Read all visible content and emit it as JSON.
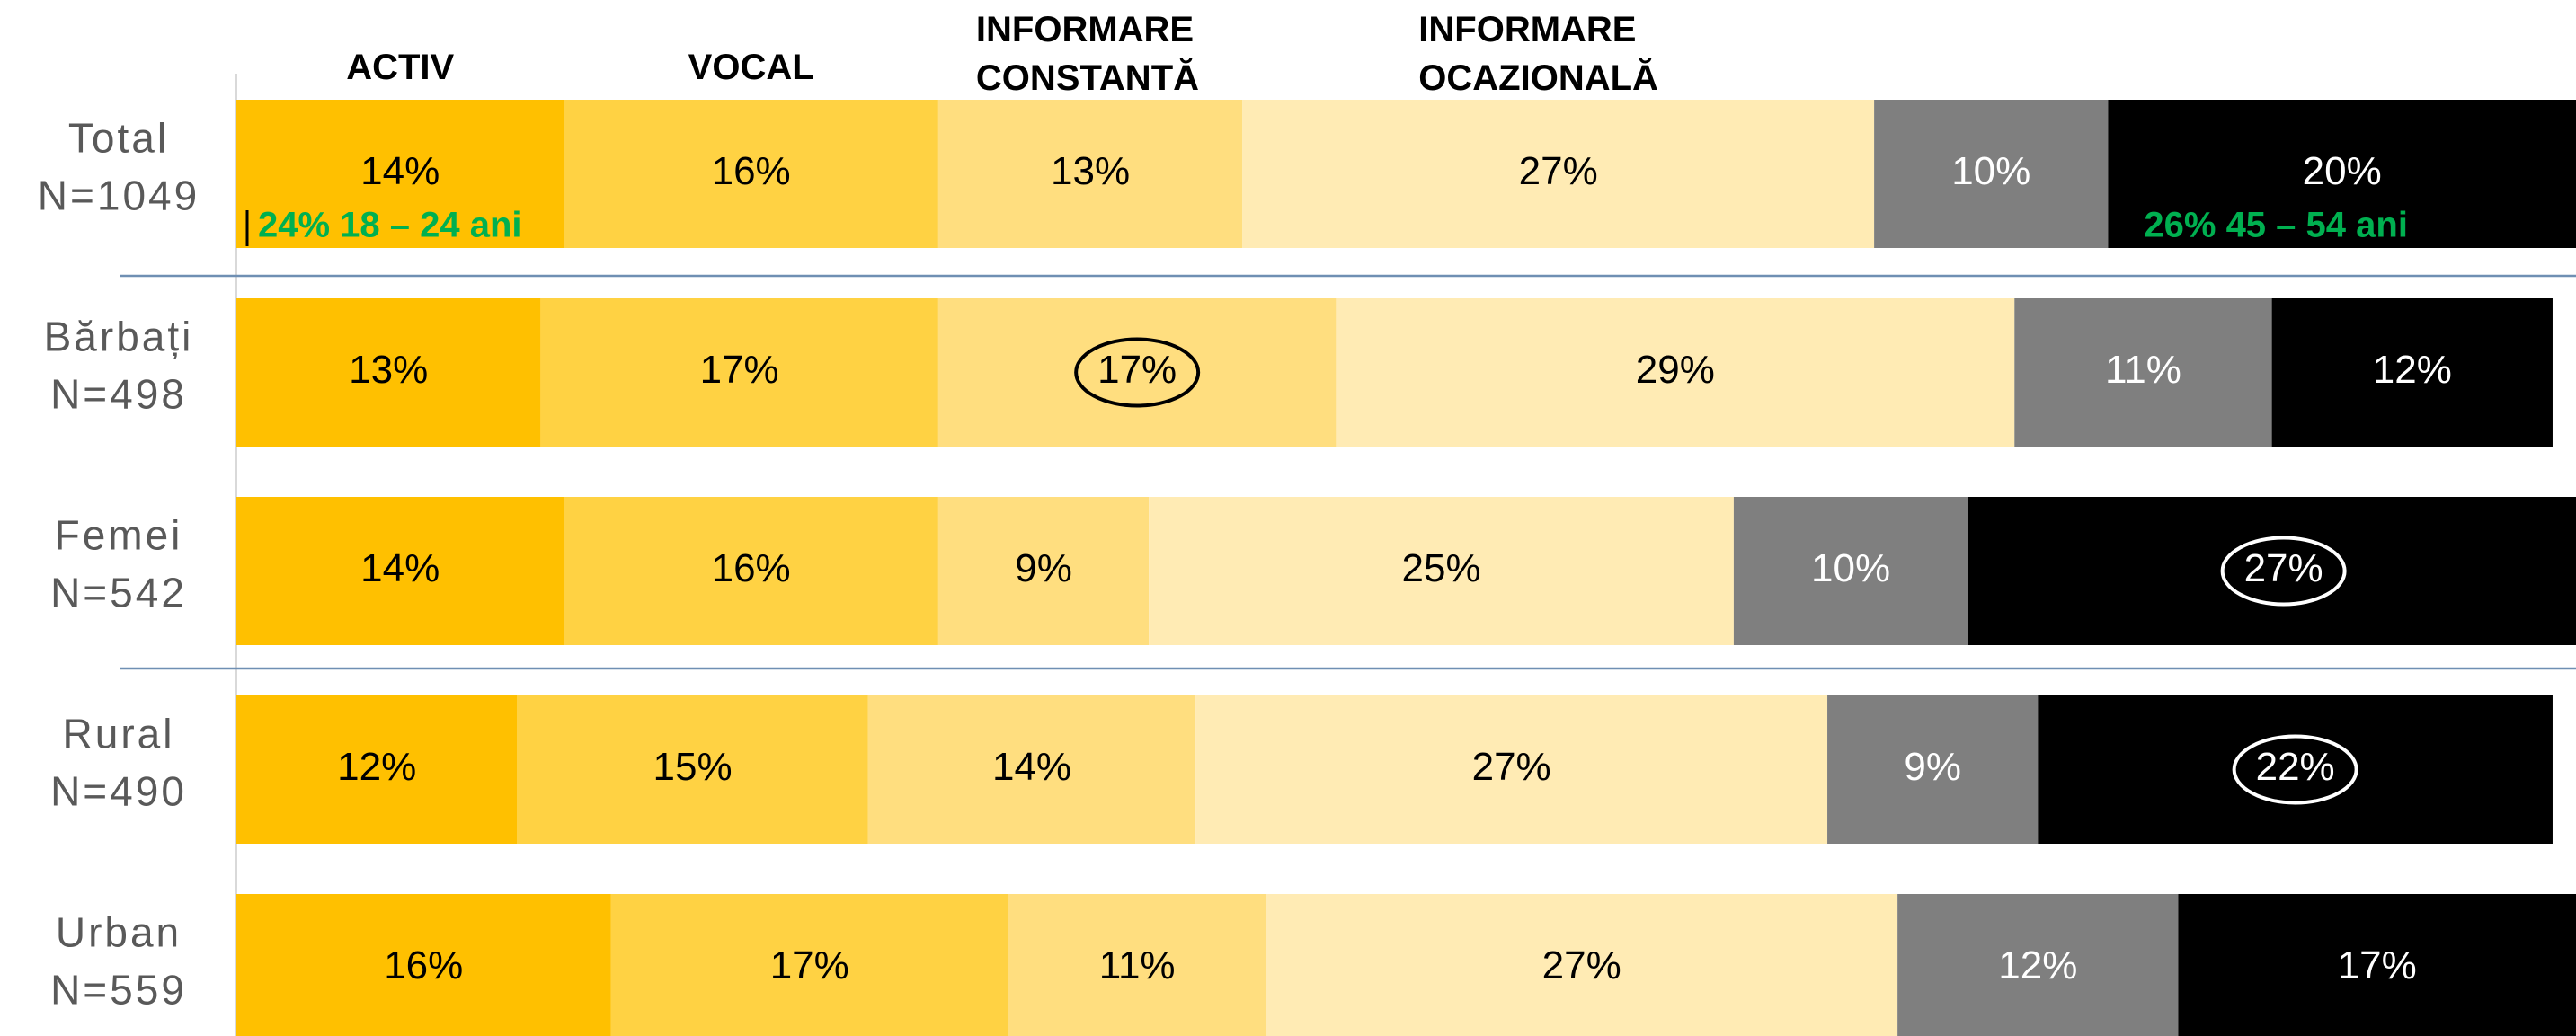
{
  "chart_data": {
    "type": "stacked_bar",
    "orientation": "horizontal",
    "categories": [
      "Total",
      "Bărbați",
      "Femei",
      "Rural",
      "Urban"
    ],
    "category_sizes": [
      "N=1049",
      "N=498",
      "N=542",
      "N=490",
      "N=559"
    ],
    "xlim": [
      0,
      100
    ],
    "series": [
      {
        "name": "ACTIV",
        "color": "#FFC000",
        "text_color": "#000000",
        "values": [
          14,
          13,
          14,
          12,
          16
        ],
        "value_labels": [
          "14%",
          "13%",
          "14%",
          "12%",
          "16%"
        ]
      },
      {
        "name": "VOCAL",
        "color": "#FFD243",
        "text_color": "#000000",
        "values": [
          16,
          17,
          16,
          15,
          17
        ],
        "value_labels": [
          "16%",
          "17%",
          "16%",
          "15%",
          "17%"
        ]
      },
      {
        "name": "INFORMARE CONSTANTĂ",
        "color": "#FFDE7F",
        "text_color": "#000000",
        "values": [
          13,
          17,
          9,
          14,
          11
        ],
        "value_labels": [
          "13%",
          "17%",
          "9%",
          "14%",
          "11%"
        ]
      },
      {
        "name": "INFORMARE OCAZIONALĂ",
        "color": "#FFEBB4",
        "text_color": "#000000",
        "values": [
          27,
          29,
          25,
          27,
          27
        ],
        "value_labels": [
          "27%",
          "29%",
          "25%",
          "27%",
          "27%"
        ]
      },
      {
        "color": "#7F7F7F",
        "text_color": "#FFFFFF",
        "values": [
          10,
          11,
          10,
          9,
          12
        ],
        "value_labels": [
          "10%",
          "11%",
          "10%",
          "9%",
          "12%"
        ]
      },
      {
        "color": "#000000",
        "text_color": "#FFFFFF",
        "values": [
          20,
          12,
          27,
          22,
          17
        ],
        "value_labels": [
          "20%",
          "12%",
          "27%",
          "22%",
          "17%"
        ]
      }
    ],
    "circled": [
      [
        2,
        1
      ],
      [
        5,
        2
      ],
      [
        5,
        3
      ]
    ],
    "annotations": [
      {
        "text": "24% 18 – 24 ani",
        "color": "#00B050"
      },
      {
        "text": "26% 45 – 54 ani",
        "color": "#00B050"
      }
    ]
  }
}
